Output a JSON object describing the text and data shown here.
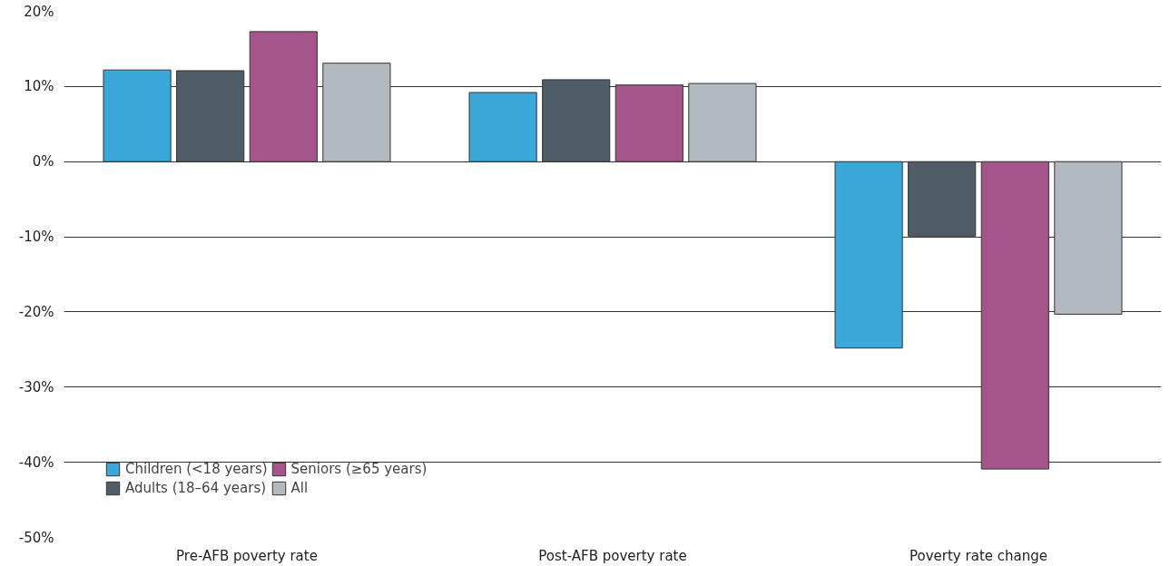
{
  "chart_data": {
    "type": "bar",
    "categories": [
      "Pre-AFB poverty rate",
      "Post-AFB poverty rate",
      "Poverty rate change"
    ],
    "series": [
      {
        "name": "Children (<18 years)",
        "color": "#3aa8d8",
        "values": [
          12.2,
          9.2,
          -24.8
        ]
      },
      {
        "name": "Adults (18–64 years)",
        "color": "#505d66",
        "values": [
          12.1,
          10.9,
          -9.9
        ]
      },
      {
        "name": "Seniors (≥65 years)",
        "color": "#a4558a",
        "values": [
          17.3,
          10.2,
          -40.9
        ]
      },
      {
        "name": "All",
        "color": "#b2b9bf",
        "values": [
          13.1,
          10.4,
          -20.3
        ]
      }
    ],
    "ylim": [
      -50,
      20
    ],
    "yticks": [
      {
        "value": 20,
        "label": "20%"
      },
      {
        "value": 10,
        "label": "10%"
      },
      {
        "value": 0,
        "label": "0%"
      },
      {
        "value": -10,
        "label": "-10%"
      },
      {
        "value": -20,
        "label": "-20%"
      },
      {
        "value": -30,
        "label": "-30%"
      },
      {
        "value": -40,
        "label": "-40%"
      },
      {
        "value": -50,
        "label": "-50%"
      }
    ],
    "grid": "y",
    "legend": "bottom left"
  }
}
